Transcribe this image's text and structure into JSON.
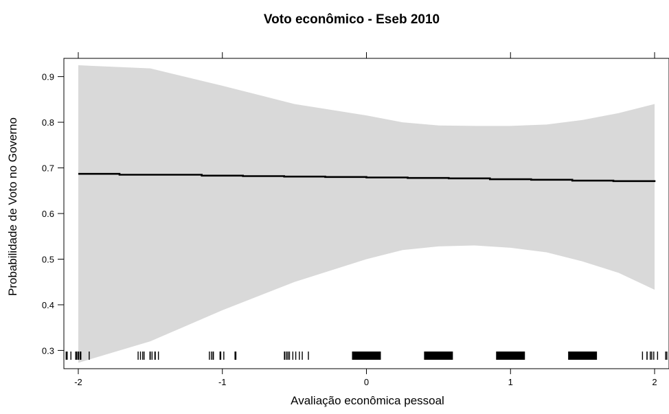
{
  "chart_data": {
    "type": "line",
    "title": "Voto econômico - Eseb 2010",
    "xlabel": "Avaliação econômica pessoal",
    "ylabel": "Probabilidade de Voto no Governo",
    "xlim": [
      -2.1,
      2.1
    ],
    "ylim": [
      0.26,
      0.94
    ],
    "x_ticks": [
      -2,
      -1,
      0,
      1,
      2
    ],
    "y_ticks": [
      0.3,
      0.4,
      0.5,
      0.6,
      0.7,
      0.8,
      0.9
    ],
    "x_tick_labels": [
      "-2",
      "-1",
      "0",
      "1",
      "2"
    ],
    "y_tick_labels": [
      "0.3",
      "0.4",
      "0.5",
      "0.6",
      "0.7",
      "0.8",
      "0.9"
    ],
    "grid": false,
    "series": [
      {
        "line_color": "#000000",
        "x": [
          -2.0,
          -1.714,
          -1.429,
          -1.143,
          -0.857,
          -0.571,
          -0.286,
          0.0,
          0.286,
          0.571,
          0.857,
          1.143,
          1.429,
          1.714,
          2.0
        ],
        "y": [
          0.687,
          0.685,
          0.685,
          0.683,
          0.682,
          0.681,
          0.68,
          0.679,
          0.678,
          0.677,
          0.675,
          0.674,
          0.672,
          0.671,
          0.669
        ]
      }
    ],
    "confidence_band": {
      "fill_color": "#d9d9d9",
      "x": [
        -2.0,
        -1.5,
        -1.0,
        -0.5,
        0.0,
        0.25,
        0.5,
        0.75,
        1.0,
        1.25,
        1.5,
        1.75,
        2.0
      ],
      "upper": [
        0.925,
        0.918,
        0.88,
        0.84,
        0.815,
        0.8,
        0.793,
        0.792,
        0.792,
        0.795,
        0.805,
        0.82,
        0.84
      ],
      "lower": [
        0.273,
        0.32,
        0.388,
        0.45,
        0.5,
        0.52,
        0.528,
        0.53,
        0.525,
        0.515,
        0.495,
        0.47,
        0.433
      ]
    },
    "rug": {
      "sparse_groups": [
        -2.0,
        -1.5,
        -1.0,
        -0.5,
        2.0
      ],
      "dense_groups": [
        0.0,
        0.5,
        1.0,
        1.5
      ]
    }
  }
}
